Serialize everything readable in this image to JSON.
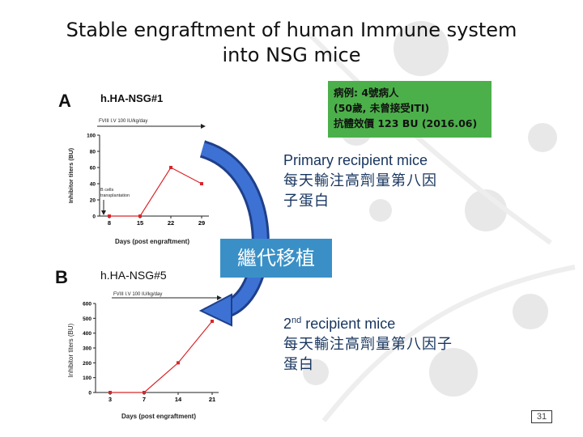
{
  "title": {
    "line1": "Stable engraftment of human Immune system",
    "line2": "into NSG mice"
  },
  "panel_a": {
    "letter": "A",
    "label": "h.HA-NSG#1",
    "arrow_label": "FVIII I.V 100 IU/kg/day",
    "annotation": "B cells transplantation"
  },
  "panel_b": {
    "letter": "B",
    "label": "h.HA-NSG#5",
    "arrow_label": "FVIII I.V 100 IU/kg/day"
  },
  "info_box": {
    "line1": "病例: 4號病人",
    "line2": "(50歲, 未曾接受ITI)",
    "line3": "抗體效價 123 BU (2016.06)"
  },
  "primary": {
    "en": "Primary recipient mice",
    "zh1": "每天輸注高劑量第八因",
    "zh2": "子蛋白"
  },
  "transfer_label": "繼代移植",
  "second": {
    "en_sup": "nd",
    "en_num": "2",
    "en_rest": " recipient mice",
    "zh1": "每天輸注高劑量第八因子",
    "zh2": "蛋白"
  },
  "page_number": "31",
  "colors": {
    "line": "#d9262b",
    "info_box": "#4cb04a",
    "transfer_box": "#3a90c6",
    "arrow": "#2a5bb8",
    "recipient_text": "#17345e"
  },
  "chart_data": [
    {
      "type": "line",
      "x": [
        8,
        15,
        22,
        29
      ],
      "y": [
        0,
        0,
        60,
        40
      ],
      "xlabel": "Days (post engraftment)",
      "ylabel": "Inhibitor titers (BU)",
      "ylim": [
        0,
        100
      ],
      "yticks": [
        0,
        20,
        40,
        60,
        80,
        100
      ],
      "xticks": [
        "8",
        "15",
        "22",
        "29"
      ]
    },
    {
      "type": "line",
      "x": [
        3,
        7,
        14,
        21
      ],
      "y": [
        0,
        0,
        200,
        480
      ],
      "xlabel": "Days (post engraftment)",
      "ylabel": "Inhibitor titers (BU)",
      "ylim": [
        0,
        600
      ],
      "yticks": [
        0,
        100,
        200,
        300,
        400,
        500,
        600
      ],
      "xticks": [
        "3",
        "7",
        "14",
        "21"
      ]
    }
  ]
}
